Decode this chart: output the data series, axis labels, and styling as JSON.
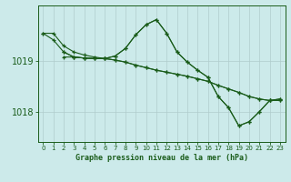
{
  "title": "Graphe pression niveau de la mer (hPa)",
  "background_color": "#cceaea",
  "grid_color": "#b0cccc",
  "line_color": "#1a5c1a",
  "xlim": [
    -0.5,
    23.5
  ],
  "ylim": [
    1017.4,
    1020.1
  ],
  "yticks": [
    1018,
    1019
  ],
  "xticks": [
    0,
    1,
    2,
    3,
    4,
    5,
    6,
    7,
    8,
    9,
    10,
    11,
    12,
    13,
    14,
    15,
    16,
    17,
    18,
    19,
    20,
    21,
    22,
    23
  ],
  "series": [
    {
      "x": [
        0,
        1,
        2,
        3,
        4,
        5,
        6,
        7,
        8,
        9,
        10,
        11,
        12,
        13,
        14,
        15,
        16,
        17,
        18,
        19,
        20,
        21,
        22,
        23
      ],
      "y": [
        1019.55,
        1019.55,
        1019.3,
        1019.18,
        1019.12,
        1019.08,
        1019.05,
        1019.02,
        1018.98,
        1018.92,
        1018.87,
        1018.82,
        1018.78,
        1018.74,
        1018.7,
        1018.65,
        1018.6,
        1018.52,
        1018.45,
        1018.38,
        1018.3,
        1018.25,
        1018.22,
        1018.22
      ]
    },
    {
      "x": [
        0,
        1,
        2,
        3,
        4,
        5,
        6,
        7,
        8,
        9,
        10,
        11,
        12,
        13,
        14,
        15,
        16,
        17,
        18,
        19,
        20,
        21,
        22,
        23
      ],
      "y": [
        1019.55,
        1019.42,
        1019.18,
        1019.08,
        1019.06,
        1019.05,
        1019.05,
        1019.1,
        1019.25,
        1019.52,
        1019.72,
        1019.82,
        1019.55,
        1019.18,
        1018.98,
        1018.82,
        1018.68,
        1018.3,
        1018.08,
        1017.72,
        1017.8,
        1018.0,
        1018.22,
        1018.25
      ]
    },
    {
      "x": [
        2,
        3,
        4,
        5,
        6,
        7,
        8,
        9,
        10,
        11,
        12,
        13,
        14,
        15,
        16,
        17,
        18,
        19,
        20,
        21,
        22,
        23
      ],
      "y": [
        1019.18,
        1019.08,
        1019.06,
        1019.05,
        1019.05,
        1019.1,
        1019.25,
        1019.52,
        1019.72,
        1019.82,
        1019.55,
        1019.18,
        1018.98,
        1018.82,
        1018.68,
        1018.3,
        1018.08,
        1017.72,
        1017.8,
        1018.0,
        1018.22,
        1018.25
      ]
    },
    {
      "x": [
        2,
        3,
        4,
        5,
        6,
        7,
        8,
        9,
        10,
        11,
        12,
        13,
        14,
        15,
        16,
        17,
        18,
        19,
        20,
        21,
        22,
        23
      ],
      "y": [
        1019.08,
        1019.08,
        1019.06,
        1019.05,
        1019.05,
        1019.02,
        1018.98,
        1018.92,
        1018.87,
        1018.82,
        1018.78,
        1018.74,
        1018.7,
        1018.65,
        1018.6,
        1018.52,
        1018.45,
        1018.38,
        1018.3,
        1018.25,
        1018.22,
        1018.22
      ]
    }
  ]
}
